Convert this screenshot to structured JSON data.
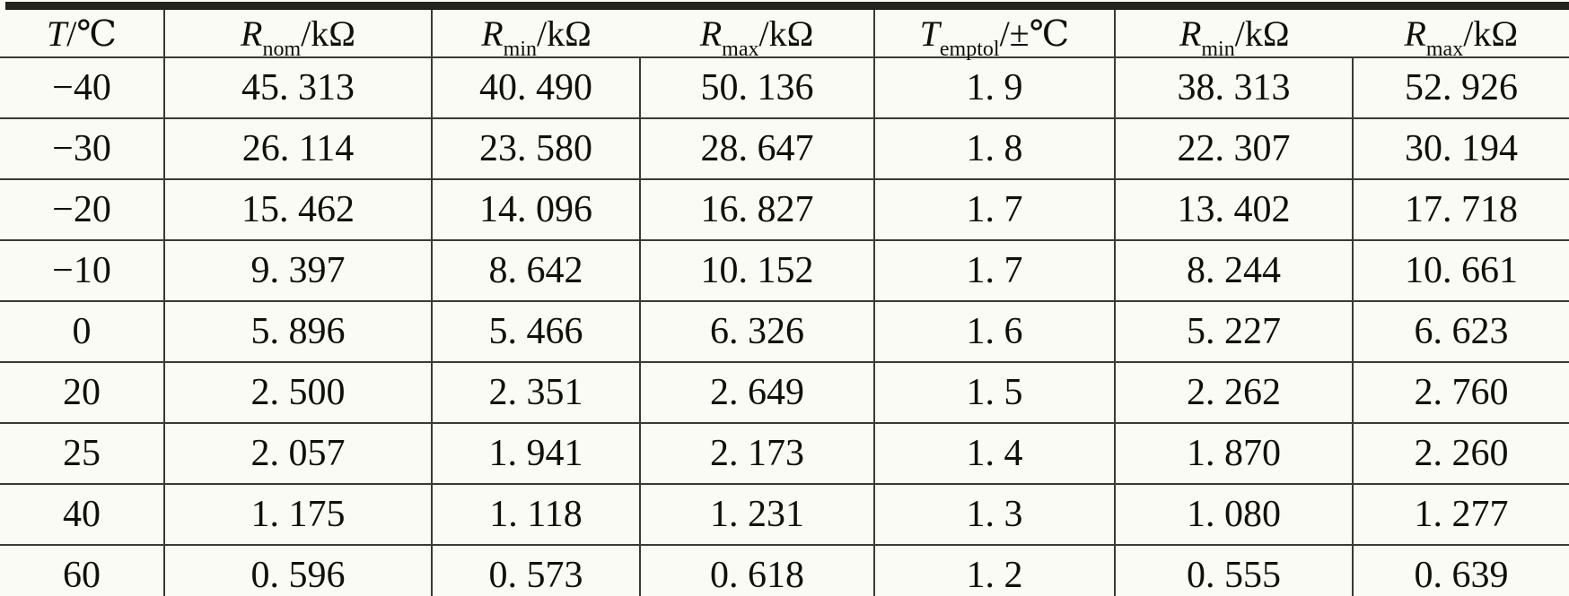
{
  "page": {
    "background": "#fbfbf5",
    "line_color": "#3a3a30",
    "top_rule_color": "#22231a",
    "text_color": "#100f08"
  },
  "table": {
    "header": [
      {
        "sym": "T",
        "sub": "",
        "suffix": "/℃"
      },
      {
        "sym": "R",
        "sub": "nom",
        "suffix": "/kΩ"
      },
      {
        "sym": "R",
        "sub": "min",
        "suffix": "/kΩ"
      },
      {
        "sym": "R",
        "sub": "max",
        "suffix": "/kΩ"
      },
      {
        "sym": "T",
        "sub": "emptol",
        "suffix": "/±℃"
      },
      {
        "sym": "R",
        "sub": "min",
        "suffix": "/kΩ"
      },
      {
        "sym": "R",
        "sub": "max",
        "suffix": "/kΩ"
      }
    ],
    "rows": [
      [
        "−40",
        "45. 313",
        "40. 490",
        "50. 136",
        "1. 9",
        "38. 313",
        "52. 926"
      ],
      [
        "−30",
        "26. 114",
        "23. 580",
        "28. 647",
        "1. 8",
        "22. 307",
        "30. 194"
      ],
      [
        "−20",
        "15. 462",
        "14. 096",
        "16. 827",
        "1. 7",
        "13. 402",
        "17. 718"
      ],
      [
        "−10",
        "9. 397",
        "8. 642",
        "10. 152",
        "1. 7",
        "8. 244",
        "10. 661"
      ],
      [
        "0",
        "5. 896",
        "5. 466",
        "6. 326",
        "1. 6",
        "5. 227",
        "6. 623"
      ],
      [
        "20",
        "2. 500",
        "2. 351",
        "2. 649",
        "1. 5",
        "2. 262",
        "2. 760"
      ],
      [
        "25",
        "2. 057",
        "1. 941",
        "2. 173",
        "1. 4",
        "1. 870",
        "2. 260"
      ],
      [
        "40",
        "1. 175",
        "1. 118",
        "1. 231",
        "1. 3",
        "1. 080",
        "1. 277"
      ],
      [
        "60",
        "0. 596",
        "0. 573",
        "0. 618",
        "1. 2",
        "0. 555",
        "0. 639"
      ]
    ]
  }
}
